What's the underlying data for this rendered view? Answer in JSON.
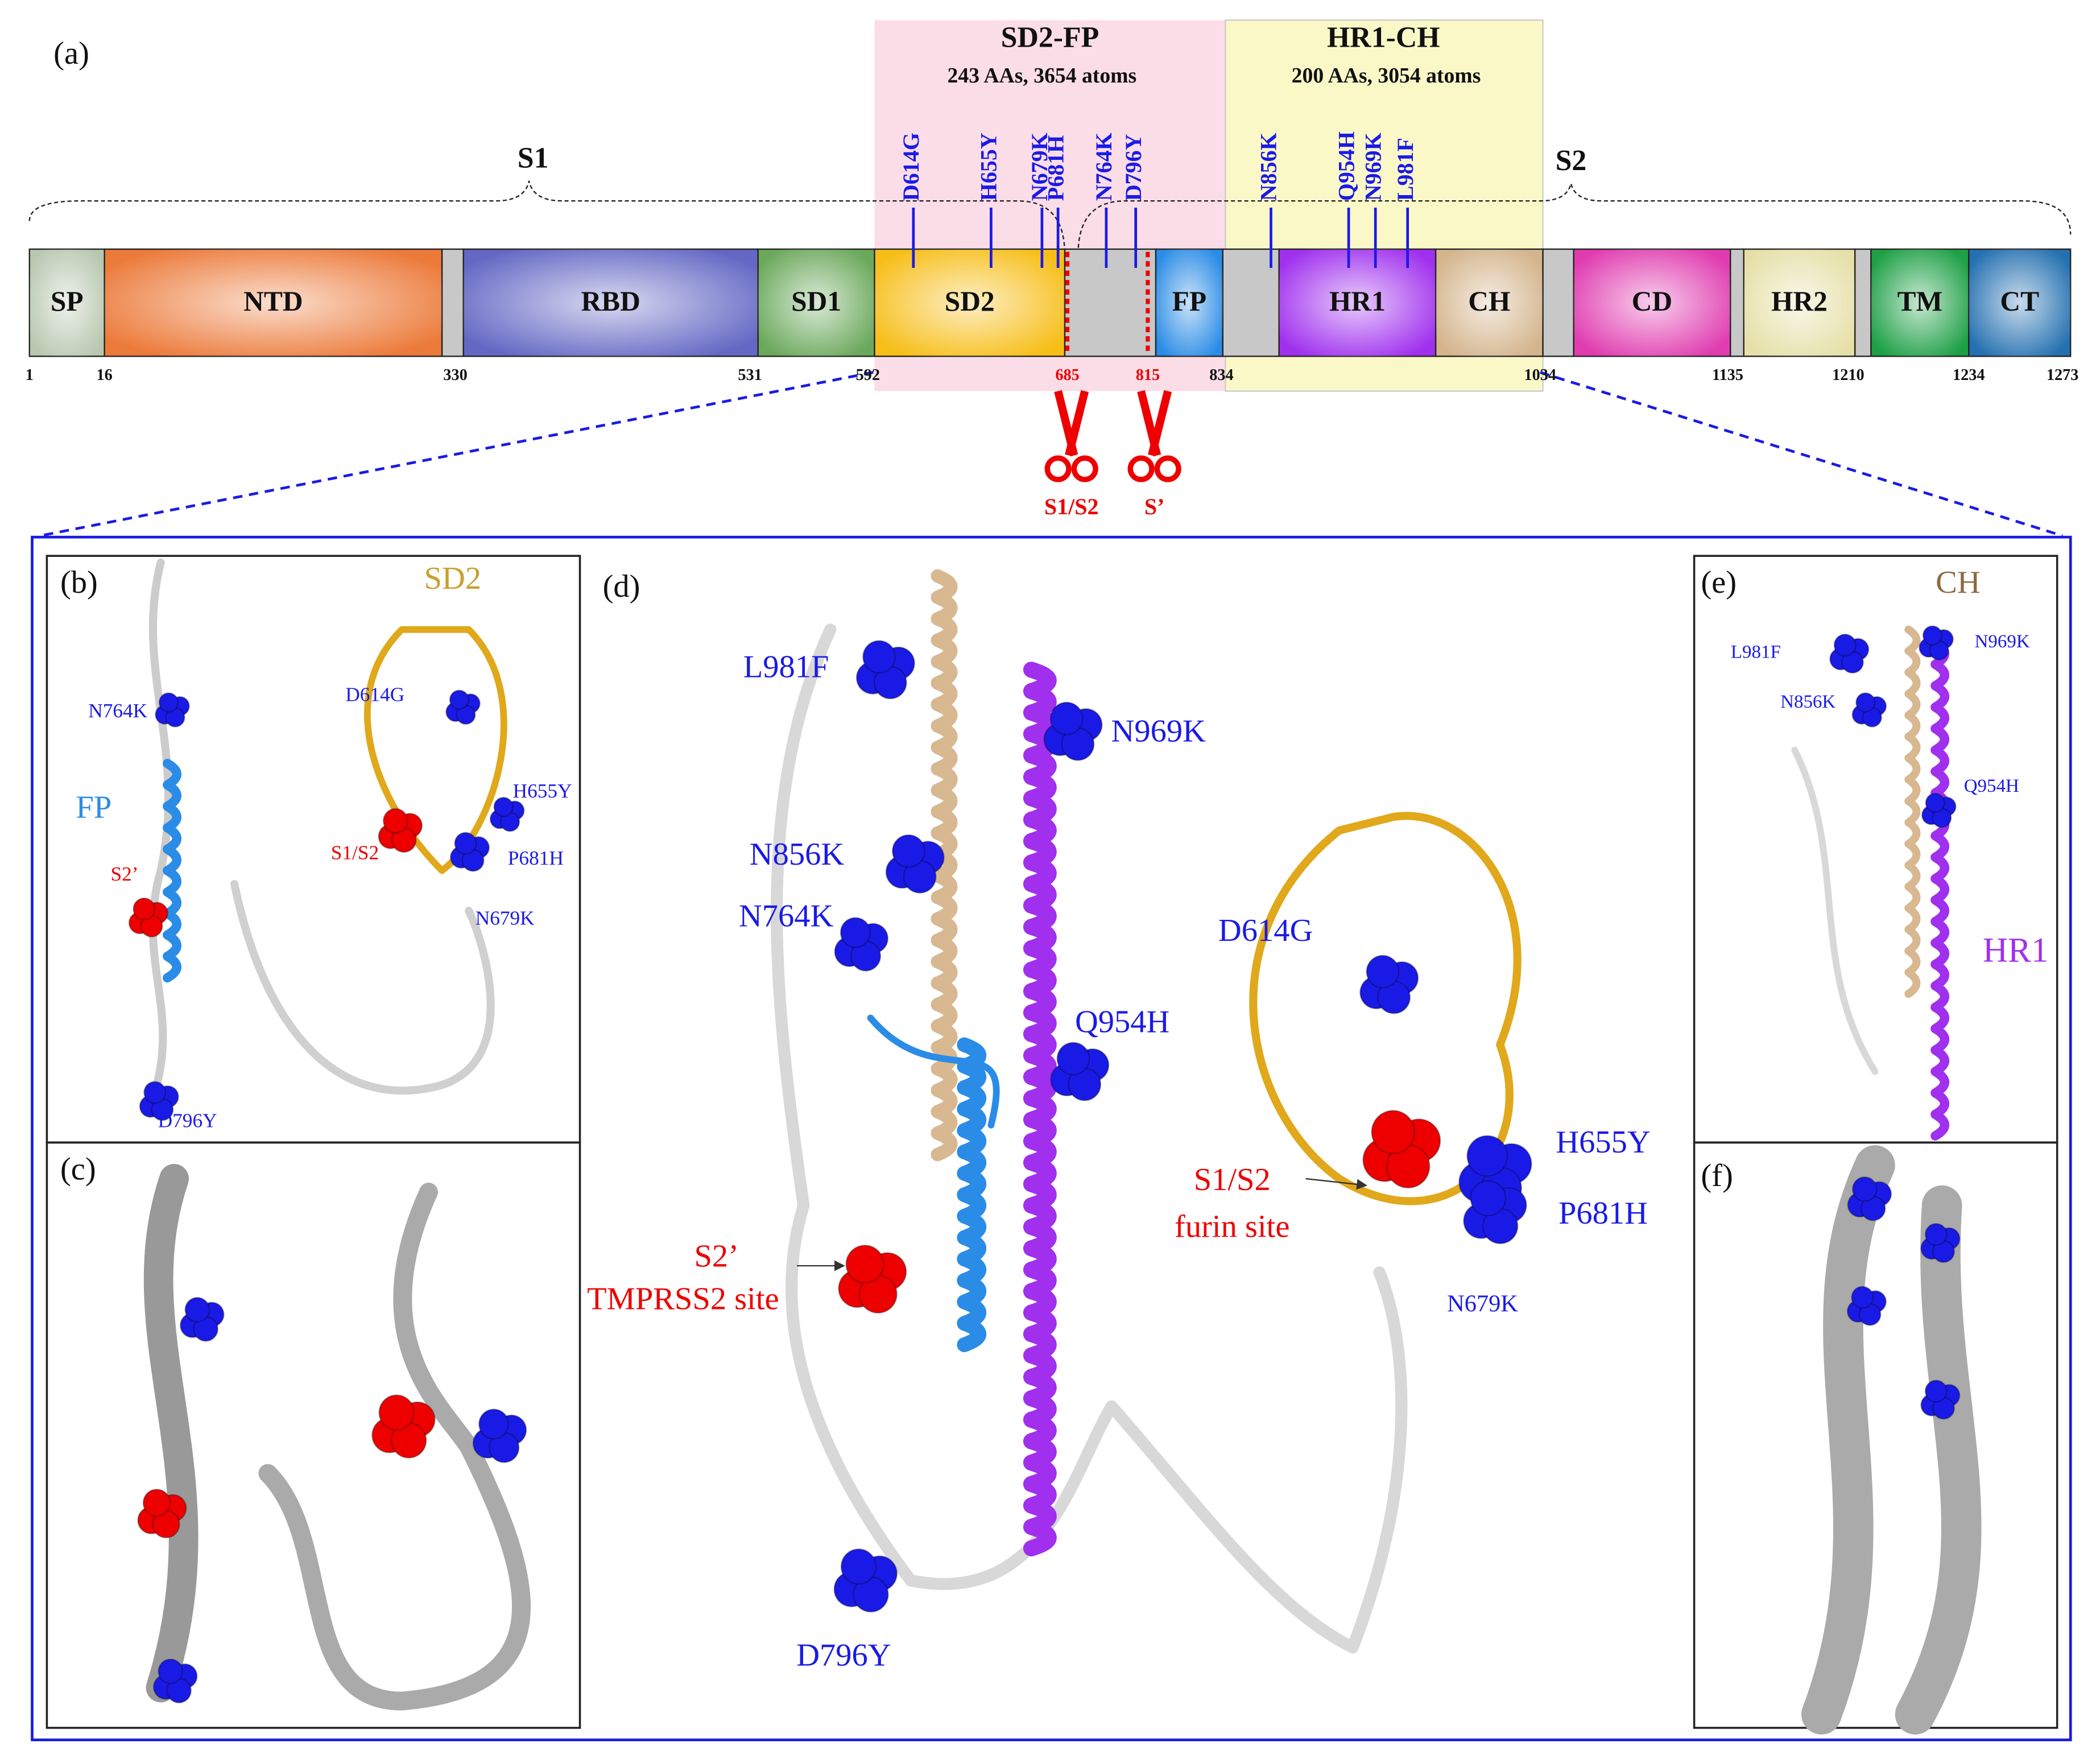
{
  "panel_a": {
    "label": "(a)",
    "s1": "S1",
    "s2": "S2",
    "regions": [
      {
        "name": "SD2-FP",
        "detail": "243 AAs, 3654 atoms"
      },
      {
        "name": "HR1-CH",
        "detail": "200 AAs, 3054 atoms"
      }
    ],
    "domains": [
      "SP",
      "NTD",
      "RBD",
      "SD1",
      "SD2",
      "FP",
      "HR1",
      "CH",
      "CD",
      "HR2",
      "TM",
      "CT"
    ],
    "positions": [
      1,
      16,
      330,
      531,
      592,
      685,
      815,
      834,
      1034,
      1135,
      1210,
      1234,
      1273
    ],
    "mutations": [
      "D614G",
      "H655Y",
      "N679K",
      "P681H",
      "N764K",
      "D796Y",
      "N856K",
      "Q954H",
      "N969K",
      "L981F"
    ],
    "cleavage_sites": [
      "S1/S2",
      "S’"
    ]
  },
  "panel_b": {
    "label": "(b)",
    "sd2": "SD2",
    "fp": "FP",
    "labels": [
      "N764K",
      "D614G",
      "H655Y",
      "S1/S2",
      "P681H",
      "S2’",
      "N679K",
      "D796Y"
    ]
  },
  "panel_c": {
    "label": "(c)"
  },
  "panel_d": {
    "label": "(d)",
    "labels": [
      "L981F",
      "N969K",
      "N856K",
      "N764K",
      "D614G",
      "Q954H",
      "H655Y",
      "P681H",
      "S1/S2",
      "furin site",
      "S2’",
      "TMPRSS2 site",
      "N679K",
      "D796Y"
    ]
  },
  "panel_e": {
    "label": "(e)",
    "ch": "CH",
    "hr1": "HR1",
    "labels": [
      "L981F",
      "N969K",
      "N856K",
      "Q954H"
    ]
  },
  "panel_f": {
    "label": "(f)"
  }
}
